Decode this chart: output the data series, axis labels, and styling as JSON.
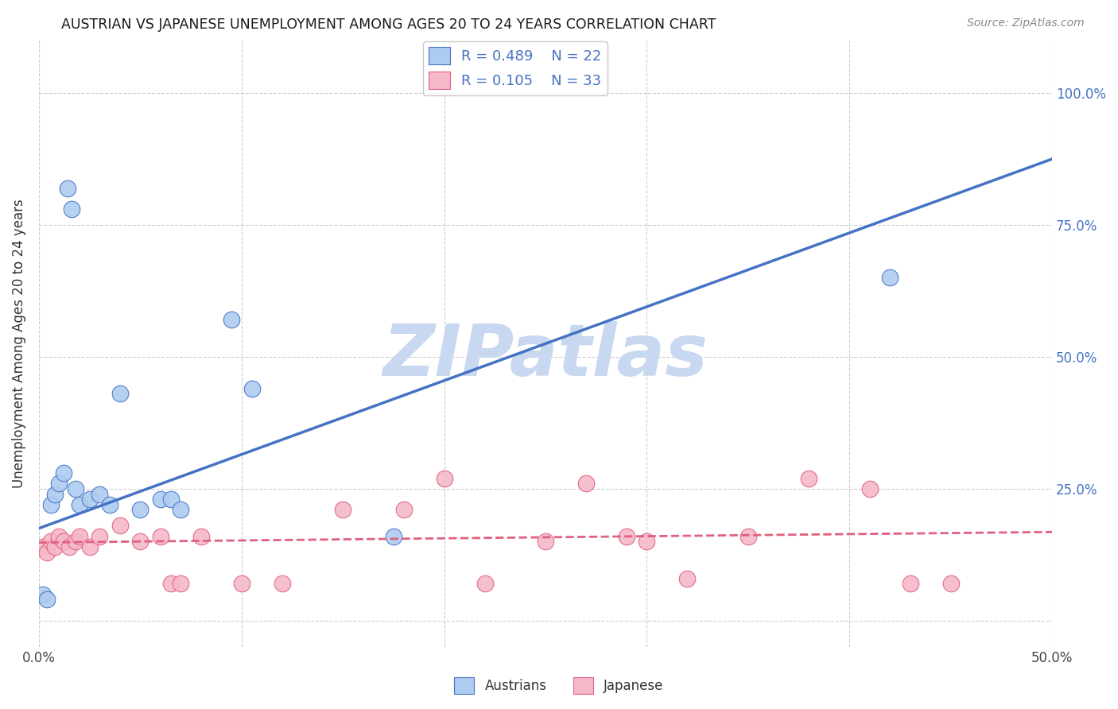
{
  "title": "AUSTRIAN VS JAPANESE UNEMPLOYMENT AMONG AGES 20 TO 24 YEARS CORRELATION CHART",
  "source": "Source: ZipAtlas.com",
  "ylabel": "Unemployment Among Ages 20 to 24 years",
  "xlim": [
    0.0,
    0.5
  ],
  "ylim": [
    -0.05,
    1.1
  ],
  "xticks": [
    0.0,
    0.1,
    0.2,
    0.3,
    0.4,
    0.5
  ],
  "yticks": [
    0.0,
    0.25,
    0.5,
    0.75,
    1.0
  ],
  "right_ytick_labels": [
    "",
    "25.0%",
    "50.0%",
    "75.0%",
    "100.0%"
  ],
  "xtick_labels": [
    "0.0%",
    "",
    "",
    "",
    "",
    "50.0%"
  ],
  "austrians_x": [
    0.002,
    0.004,
    0.006,
    0.008,
    0.01,
    0.012,
    0.014,
    0.016,
    0.018,
    0.02,
    0.025,
    0.03,
    0.035,
    0.04,
    0.05,
    0.06,
    0.065,
    0.07,
    0.095,
    0.105,
    0.175,
    0.42
  ],
  "austrians_y": [
    0.05,
    0.04,
    0.22,
    0.24,
    0.26,
    0.28,
    0.82,
    0.78,
    0.25,
    0.22,
    0.23,
    0.24,
    0.22,
    0.43,
    0.21,
    0.23,
    0.23,
    0.21,
    0.57,
    0.44,
    0.16,
    0.65
  ],
  "japanese_x": [
    0.002,
    0.004,
    0.006,
    0.008,
    0.01,
    0.012,
    0.015,
    0.018,
    0.02,
    0.025,
    0.03,
    0.04,
    0.05,
    0.06,
    0.065,
    0.07,
    0.08,
    0.1,
    0.12,
    0.15,
    0.18,
    0.2,
    0.22,
    0.25,
    0.27,
    0.29,
    0.3,
    0.32,
    0.35,
    0.38,
    0.41,
    0.43,
    0.45
  ],
  "japanese_y": [
    0.14,
    0.13,
    0.15,
    0.14,
    0.16,
    0.15,
    0.14,
    0.15,
    0.16,
    0.14,
    0.16,
    0.18,
    0.15,
    0.16,
    0.07,
    0.07,
    0.16,
    0.07,
    0.07,
    0.21,
    0.21,
    0.27,
    0.07,
    0.15,
    0.26,
    0.16,
    0.15,
    0.08,
    0.16,
    0.27,
    0.25,
    0.07,
    0.07
  ],
  "austrians_r": 0.489,
  "austrians_n": 22,
  "japanese_r": 0.105,
  "japanese_n": 33,
  "blue_scatter_color": "#AECBF0",
  "pink_scatter_color": "#F5B8C8",
  "blue_line_color": "#4472C4",
  "pink_line_color": "#E06080",
  "aus_line_x": [
    0.0,
    0.5
  ],
  "aus_line_y": [
    0.175,
    0.875
  ],
  "jap_line_x": [
    0.0,
    0.5
  ],
  "jap_line_y": [
    0.148,
    0.168
  ],
  "watermark": "ZIPatlas",
  "watermark_color": "#C8D8F0",
  "background_color": "#FFFFFF",
  "grid_color": "#CCCCCC"
}
